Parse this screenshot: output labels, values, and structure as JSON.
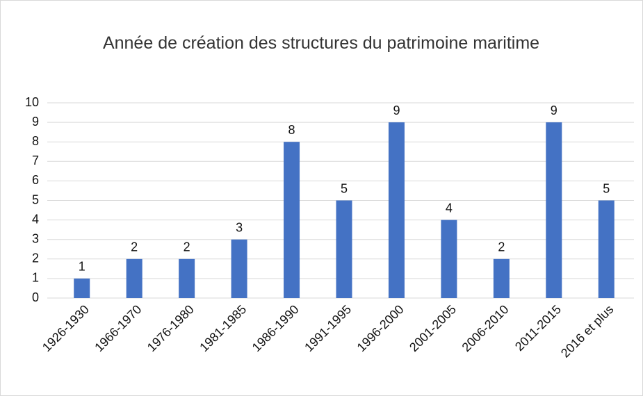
{
  "chart_data": {
    "type": "bar",
    "title": "Année de création des structures du patrimoine maritime",
    "categories": [
      "1926-1930",
      "1966-1970",
      "1976-1980",
      "1981-1985",
      "1986-1990",
      "1991-1995",
      "1996-2000",
      "2001-2005",
      "2006-2010",
      "2011-2015",
      "2016 et plus"
    ],
    "values": [
      1,
      2,
      2,
      3,
      8,
      5,
      9,
      4,
      2,
      9,
      5
    ],
    "color": "#4472c4",
    "ylim": [
      0,
      10
    ],
    "yticks": [
      0,
      1,
      2,
      3,
      4,
      5,
      6,
      7,
      8,
      9,
      10
    ],
    "grid": true
  }
}
